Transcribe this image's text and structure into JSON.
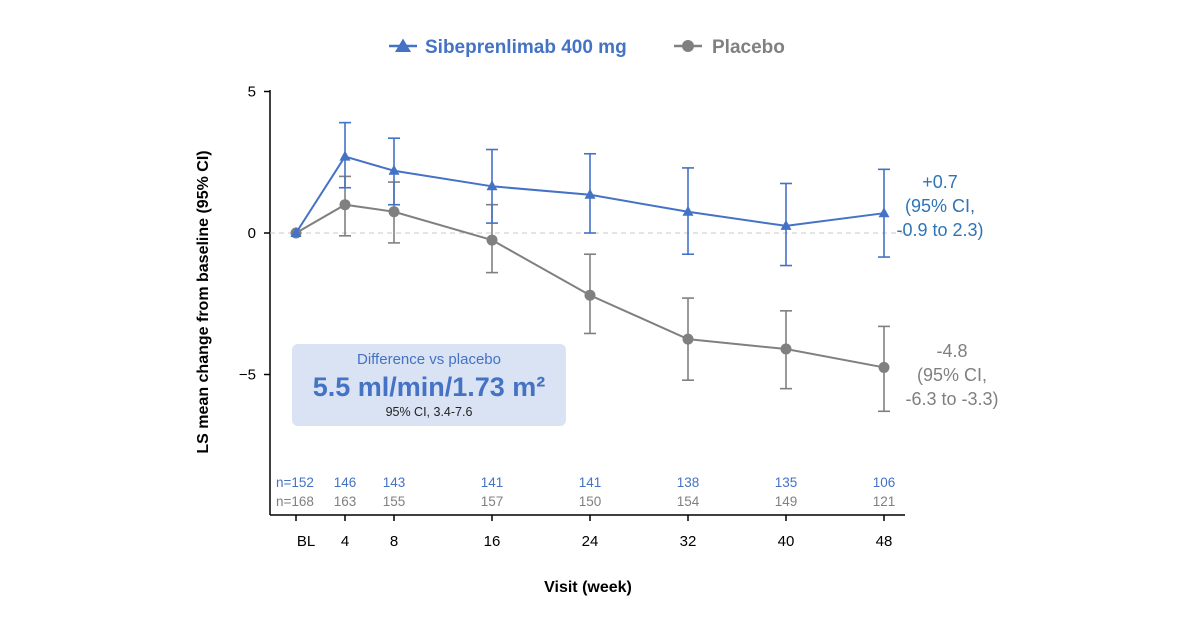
{
  "chart_data": {
    "type": "line",
    "xlabel": "Visit (week)",
    "ylabel": "LS mean change from baseline (95% CI)",
    "ylim": [
      -10,
      5
    ],
    "yticks": [
      5,
      0,
      -5
    ],
    "ytick_labels": [
      "5",
      "0",
      "−5"
    ],
    "categories": [
      "BL",
      "4",
      "8",
      "16",
      "24",
      "32",
      "40",
      "48"
    ],
    "x": [
      0,
      4,
      8,
      16,
      24,
      32,
      40,
      48
    ],
    "grid": false,
    "reference_line": 0,
    "legend_position": "top-center",
    "series": [
      {
        "name": "Sibeprenlimab 400 mg",
        "color": "#4472c4",
        "marker": "triangle",
        "values": [
          0,
          2.7,
          2.2,
          1.65,
          1.35,
          0.75,
          0.25,
          0.7
        ],
        "ci_low": [
          null,
          1.6,
          1.0,
          0.35,
          0.0,
          -0.75,
          -1.15,
          -0.85
        ],
        "ci_high": [
          null,
          3.9,
          3.35,
          2.95,
          2.8,
          2.3,
          1.75,
          2.25
        ],
        "n_label": "n=152",
        "n": [
          "146",
          "143",
          "141",
          "141",
          "138",
          "135",
          "106"
        ],
        "end_label": [
          "+0.7",
          "(95% CI,",
          "-0.9 to 2.3)"
        ]
      },
      {
        "name": "Placebo",
        "color": "#808080",
        "marker": "circle",
        "values": [
          0,
          1.0,
          0.75,
          -0.25,
          -2.2,
          -3.75,
          -4.1,
          -4.75
        ],
        "ci_low": [
          null,
          -0.1,
          -0.35,
          -1.4,
          -3.55,
          -5.2,
          -5.5,
          -6.3
        ],
        "ci_high": [
          null,
          2.0,
          1.8,
          1.0,
          -0.75,
          -2.3,
          -2.75,
          -3.3
        ],
        "n_label": "n=168",
        "n": [
          "163",
          "155",
          "157",
          "150",
          "154",
          "149",
          "121"
        ],
        "end_label": [
          "-4.8",
          "(95% CI,",
          "-6.3 to -3.3)"
        ]
      }
    ],
    "annotation_box": {
      "title": "Difference vs placebo",
      "value": "5.5 ml/min/1.73 m²",
      "ci": "95% CI, 3.4-7.6",
      "fill": "#dae3f3"
    }
  }
}
